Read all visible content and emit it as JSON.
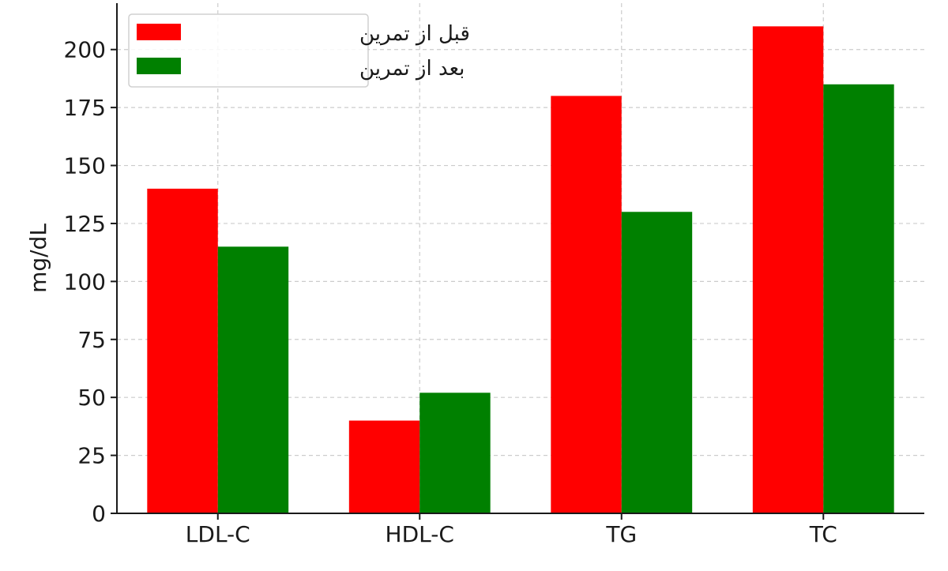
{
  "chart_data": {
    "type": "bar",
    "title": "",
    "xlabel": "",
    "ylabel": "mg/dL",
    "categories": [
      "LDL-C",
      "HDL-C",
      "TG",
      "TC"
    ],
    "series": [
      {
        "name": "قبل از تمرین",
        "color": "#ff0000",
        "values": [
          140,
          40,
          180,
          210
        ]
      },
      {
        "name": "بعد از تمرین",
        "color": "#008000",
        "values": [
          115,
          52,
          130,
          185
        ]
      }
    ],
    "ylim": [
      0,
      220
    ],
    "yticks": [
      0,
      25,
      50,
      75,
      100,
      125,
      150,
      175,
      200
    ],
    "grid": true,
    "legend_position": "top-left"
  }
}
